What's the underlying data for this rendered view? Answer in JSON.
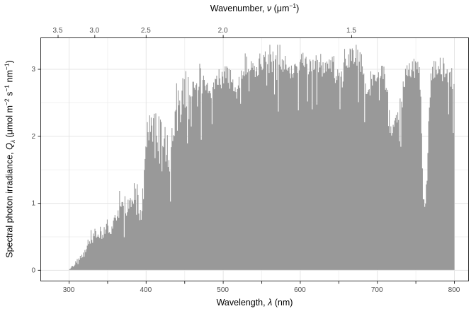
{
  "figure": {
    "background_color": "#ffffff",
    "top_axis": {
      "title_parts": [
        {
          "t": "Wavenumber, "
        },
        {
          "t": "ν",
          "i": true
        },
        {
          "t": " (μm"
        },
        {
          "t": "−1",
          "sup": true
        },
        {
          "t": ")"
        }
      ],
      "tick_labels": [
        "3.5",
        "3.0",
        "2.5",
        "2.0",
        "1.5"
      ],
      "tick_wavenumbers": [
        3.5,
        3.0,
        2.5,
        2.0,
        1.5
      ]
    },
    "bottom_axis": {
      "title_parts": [
        {
          "t": "Wavelength, "
        },
        {
          "t": "λ",
          "i": true
        },
        {
          "t": " (nm)"
        }
      ],
      "tick_labels": [
        "300",
        "400",
        "500",
        "600",
        "700",
        "800"
      ],
      "tick_values": [
        300,
        400,
        500,
        600,
        700,
        800
      ],
      "minor_tick_values": [
        350,
        450,
        550,
        650,
        750
      ]
    },
    "left_axis": {
      "title_parts": [
        {
          "t": "Spectral photon irradiance, "
        },
        {
          "t": "Q",
          "i": true
        },
        {
          "t": "λ",
          "i": true,
          "sub": true
        },
        {
          "t": " (μmol m"
        },
        {
          "t": "−2",
          "sup": true
        },
        {
          "t": " s"
        },
        {
          "t": "−1",
          "sup": true
        },
        {
          "t": " nm"
        },
        {
          "t": "−1",
          "sup": true
        },
        {
          "t": ")"
        }
      ],
      "tick_labels": [
        "0",
        "1",
        "2",
        "3"
      ],
      "tick_values": [
        0,
        1,
        2,
        3
      ],
      "minor_grid_values": [
        0.5,
        1.5,
        2.5
      ]
    },
    "colors": {
      "area_fill": "#999999",
      "panel_border": "#333333",
      "grid_major": "#e5e5e5",
      "grid_minor": "#f1f1f1",
      "tick_mark": "#333333",
      "tick_label": "#4d4d4d",
      "title_text": "#000000"
    }
  },
  "chart_data": {
    "type": "area",
    "title": "",
    "xlabel": "Wavelength, λ (nm)",
    "ylabel": "Spectral photon irradiance, Qλ (μmol m−2 s−1 nm−1)",
    "x2label": "Wavenumber, ν (μm−1)",
    "x2_relation": "wavenumber = 1000 / wavelength_nm",
    "xlim": [
      263.2,
      819.3
    ],
    "ylim": [
      -0.17,
      3.47
    ],
    "x_ticks": [
      300,
      400,
      500,
      600,
      700,
      800
    ],
    "x_minor_ticks": [
      350,
      450,
      550,
      650,
      750
    ],
    "y_ticks": [
      0,
      1,
      2,
      3
    ],
    "top_axis_ticks_wavenumber": [
      3.5,
      3.0,
      2.5,
      2.0,
      1.5
    ],
    "grid": true,
    "legend": false,
    "x_start": 300,
    "x_step": 2.5,
    "values": [
      0.0,
      0.03,
      0.06,
      0.09,
      0.13,
      0.16,
      0.18,
      0.22,
      0.28,
      0.33,
      0.38,
      0.42,
      0.46,
      0.5,
      0.54,
      0.56,
      0.58,
      0.55,
      0.58,
      0.62,
      0.66,
      0.6,
      0.62,
      0.65,
      0.72,
      0.78,
      0.88,
      0.92,
      0.88,
      0.82,
      0.88,
      1.0,
      1.1,
      1.02,
      1.15,
      1.3,
      1.1,
      0.82,
      0.95,
      1.2,
      1.7,
      1.95,
      2.05,
      2.02,
      2.1,
      2.08,
      2.02,
      2.08,
      2.12,
      2.0,
      1.95,
      1.78,
      1.52,
      1.8,
      2.18,
      2.3,
      2.42,
      2.48,
      2.55,
      2.58,
      2.62,
      2.66,
      2.65,
      2.62,
      2.68,
      2.7,
      2.7,
      2.68,
      2.72,
      2.76,
      2.8,
      2.78,
      2.82,
      2.72,
      2.52,
      2.68,
      2.8,
      2.88,
      2.92,
      2.84,
      2.86,
      2.9,
      2.92,
      2.86,
      2.84,
      2.78,
      2.68,
      2.52,
      2.78,
      2.88,
      2.94,
      2.98,
      3.02,
      2.98,
      2.96,
      3.0,
      3.04,
      2.94,
      3.04,
      3.08,
      3.1,
      3.12,
      3.15,
      3.08,
      3.06,
      3.1,
      3.12,
      3.08,
      3.1,
      3.12,
      3.15,
      3.1,
      3.08,
      3.02,
      2.98,
      2.82,
      2.8,
      2.98,
      3.06,
      3.1,
      3.12,
      3.1,
      3.08,
      3.06,
      3.08,
      3.06,
      3.04,
      3.06,
      3.08,
      3.06,
      3.08,
      3.04,
      3.0,
      3.04,
      3.08,
      3.1,
      3.12,
      3.08,
      3.02,
      2.96,
      2.9,
      2.86,
      2.8,
      2.98,
      3.08,
      3.12,
      3.15,
      3.18,
      3.16,
      3.14,
      3.16,
      3.14,
      3.08,
      2.98,
      2.78,
      2.65,
      2.7,
      2.8,
      2.86,
      2.9,
      2.94,
      2.98,
      2.98,
      2.94,
      2.88,
      2.68,
      2.42,
      2.08,
      2.02,
      2.22,
      2.28,
      2.32,
      2.44,
      2.64,
      2.82,
      2.88,
      2.92,
      2.96,
      2.98,
      3.0,
      3.02,
      3.0,
      2.94,
      2.35,
      1.05,
      0.92,
      1.4,
      2.3,
      2.85,
      2.98,
      3.02,
      3.05,
      3.06,
      3.04,
      3.02,
      3.0,
      2.98,
      2.94,
      2.9,
      2.86,
      2.8
    ],
    "absorption_features_nm": [
      393,
      397,
      430,
      486,
      517,
      589,
      656,
      687,
      719,
      761
    ],
    "noise": {
      "seed": 42,
      "uv_boundary_nm": 460,
      "relative_amp_uv": 0.16,
      "relative_amp_vis": 0.048,
      "base_amp": 0.012,
      "dip_probability": 0.1,
      "dip_depth_uv": 0.38,
      "dip_depth_vis": 0.26,
      "spike_probability": 0.08,
      "value_clamp_max": 3.36
    }
  }
}
